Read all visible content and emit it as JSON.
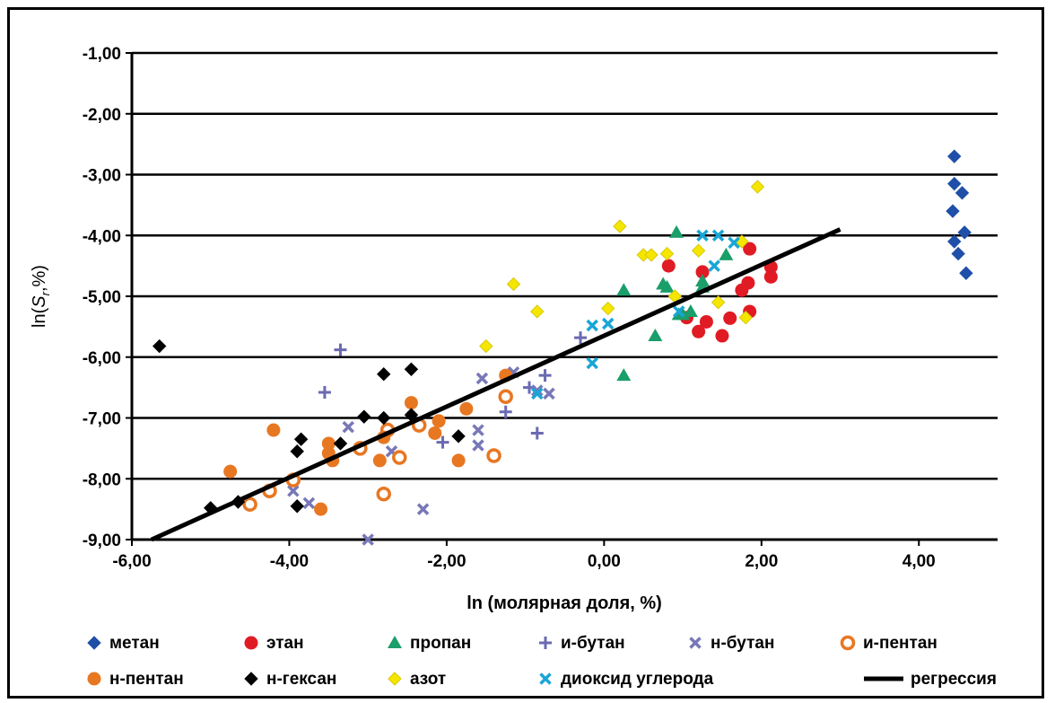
{
  "chart_data": {
    "type": "scatter",
    "xlabel": "ln (молярная доля, %)",
    "ylabel": "ln(Sr,%)",
    "xlim": [
      -6,
      5
    ],
    "ylim": [
      -9,
      -1
    ],
    "x_ticks": [
      -6,
      -4,
      -2,
      0,
      2,
      4
    ],
    "x_tick_labels": [
      "-6,00",
      "-4,00",
      "-2,00",
      "0,00",
      "2,00",
      "4,00"
    ],
    "y_ticks": [
      -1,
      -2,
      -3,
      -4,
      -5,
      -6,
      -7,
      -8,
      -9
    ],
    "y_tick_labels": [
      "-1,00",
      "-2,00",
      "-3,00",
      "-4,00",
      "-5,00",
      "-6,00",
      "-7,00",
      "-8,00",
      "-9,00"
    ],
    "grid": "horizontal",
    "legend_position": "bottom",
    "series": [
      {
        "name": "метан",
        "marker": "diamond",
        "color": "#1f4fa8",
        "points": [
          [
            4.45,
            -2.7
          ],
          [
            4.45,
            -3.15
          ],
          [
            4.55,
            -3.3
          ],
          [
            4.43,
            -3.6
          ],
          [
            4.58,
            -3.95
          ],
          [
            4.45,
            -4.1
          ],
          [
            4.5,
            -4.3
          ],
          [
            4.6,
            -4.62
          ]
        ]
      },
      {
        "name": "этан",
        "marker": "circle",
        "color": "#e01b24",
        "points": [
          [
            0.82,
            -4.5
          ],
          [
            1.25,
            -4.6
          ],
          [
            1.85,
            -4.22
          ],
          [
            2.12,
            -4.52
          ],
          [
            2.12,
            -4.68
          ],
          [
            1.83,
            -4.78
          ],
          [
            1.75,
            -4.9
          ],
          [
            1.05,
            -5.35
          ],
          [
            1.3,
            -5.42
          ],
          [
            1.6,
            -5.36
          ],
          [
            1.2,
            -5.58
          ],
          [
            1.5,
            -5.65
          ],
          [
            1.85,
            -5.25
          ]
        ]
      },
      {
        "name": "пропан",
        "marker": "triangle",
        "color": "#1a9e6a",
        "points": [
          [
            0.92,
            -3.95
          ],
          [
            1.55,
            -4.32
          ],
          [
            0.75,
            -4.8
          ],
          [
            0.8,
            -4.85
          ],
          [
            1.25,
            -4.75
          ],
          [
            1.25,
            -4.85
          ],
          [
            0.25,
            -4.9
          ],
          [
            0.95,
            -5.3
          ],
          [
            1.1,
            -5.25
          ],
          [
            1.0,
            -5.3
          ],
          [
            0.65,
            -5.65
          ],
          [
            0.25,
            -6.3
          ]
        ]
      },
      {
        "name": "и-бутан",
        "marker": "plus",
        "color": "#6a6ab2",
        "points": [
          [
            -3.35,
            -5.88
          ],
          [
            -3.55,
            -6.58
          ],
          [
            -0.3,
            -5.68
          ],
          [
            -1.25,
            -6.9
          ],
          [
            -2.05,
            -7.4
          ],
          [
            -0.85,
            -7.25
          ],
          [
            -0.75,
            -6.3
          ],
          [
            -0.95,
            -6.5
          ]
        ]
      },
      {
        "name": "н-бутан",
        "marker": "x",
        "color": "#7878b8",
        "points": [
          [
            -1.15,
            -6.25
          ],
          [
            -1.55,
            -6.35
          ],
          [
            -0.85,
            -6.55
          ],
          [
            -0.7,
            -6.6
          ],
          [
            -1.6,
            -7.2
          ],
          [
            -1.6,
            -7.45
          ],
          [
            -2.7,
            -7.55
          ],
          [
            -2.6,
            -7.65
          ],
          [
            -3.25,
            -7.15
          ],
          [
            -3.95,
            -8.2
          ],
          [
            -3.75,
            -8.4
          ],
          [
            -2.3,
            -8.5
          ],
          [
            -3.0,
            -9.0
          ]
        ]
      },
      {
        "name": "и-пентан",
        "marker": "ring",
        "color": "#e87722",
        "points": [
          [
            -1.25,
            -6.65
          ],
          [
            -2.75,
            -7.2
          ],
          [
            -2.35,
            -7.12
          ],
          [
            -2.6,
            -7.65
          ],
          [
            -3.1,
            -7.5
          ],
          [
            -1.4,
            -7.62
          ],
          [
            -3.95,
            -8.02
          ],
          [
            -4.25,
            -8.2
          ],
          [
            -4.5,
            -8.42
          ],
          [
            -2.8,
            -8.25
          ]
        ]
      },
      {
        "name": "н-пентан",
        "marker": "circle",
        "color": "#e87722",
        "points": [
          [
            -1.25,
            -6.3
          ],
          [
            -2.45,
            -6.75
          ],
          [
            -1.75,
            -6.85
          ],
          [
            -2.1,
            -7.05
          ],
          [
            -2.15,
            -7.25
          ],
          [
            -4.2,
            -7.2
          ],
          [
            -2.8,
            -7.32
          ],
          [
            -3.5,
            -7.42
          ],
          [
            -3.5,
            -7.58
          ],
          [
            -3.45,
            -7.7
          ],
          [
            -2.85,
            -7.7
          ],
          [
            -1.85,
            -7.7
          ],
          [
            -4.75,
            -7.88
          ],
          [
            -3.6,
            -8.5
          ]
        ]
      },
      {
        "name": "н-гексан",
        "marker": "diamond",
        "color": "#000000",
        "points": [
          [
            -5.65,
            -5.82
          ],
          [
            -2.8,
            -6.28
          ],
          [
            -2.45,
            -6.2
          ],
          [
            -3.05,
            -6.98
          ],
          [
            -2.8,
            -7.0
          ],
          [
            -2.45,
            -6.95
          ],
          [
            -3.85,
            -7.35
          ],
          [
            -3.35,
            -7.42
          ],
          [
            -1.85,
            -7.3
          ],
          [
            -3.9,
            -7.55
          ],
          [
            -5.0,
            -8.48
          ],
          [
            -4.65,
            -8.38
          ],
          [
            -3.9,
            -8.45
          ]
        ]
      },
      {
        "name": "азот",
        "marker": "diamond",
        "color": "#f5e600",
        "points": [
          [
            1.95,
            -3.2
          ],
          [
            0.2,
            -3.85
          ],
          [
            0.8,
            -4.3
          ],
          [
            1.2,
            -4.25
          ],
          [
            0.5,
            -4.32
          ],
          [
            0.6,
            -4.32
          ],
          [
            -1.15,
            -4.8
          ],
          [
            -0.85,
            -5.25
          ],
          [
            0.05,
            -5.2
          ],
          [
            0.9,
            -5.0
          ],
          [
            1.45,
            -5.1
          ],
          [
            -1.5,
            -5.82
          ],
          [
            1.8,
            -5.35
          ],
          [
            1.75,
            -4.1
          ]
        ]
      },
      {
        "name": "диоксид углерода",
        "marker": "x",
        "color": "#19a6d6",
        "points": [
          [
            1.25,
            -4.0
          ],
          [
            1.45,
            -4.0
          ],
          [
            1.65,
            -4.12
          ],
          [
            1.4,
            -4.5
          ],
          [
            0.95,
            -5.25
          ],
          [
            0.05,
            -5.45
          ],
          [
            -0.15,
            -5.48
          ],
          [
            -0.15,
            -6.1
          ],
          [
            -0.85,
            -6.6
          ]
        ]
      },
      {
        "name": "регрессия",
        "marker": "line",
        "color": "#000000",
        "points": [
          [
            -5.75,
            -9.0
          ],
          [
            3.0,
            -3.9
          ]
        ]
      }
    ]
  }
}
